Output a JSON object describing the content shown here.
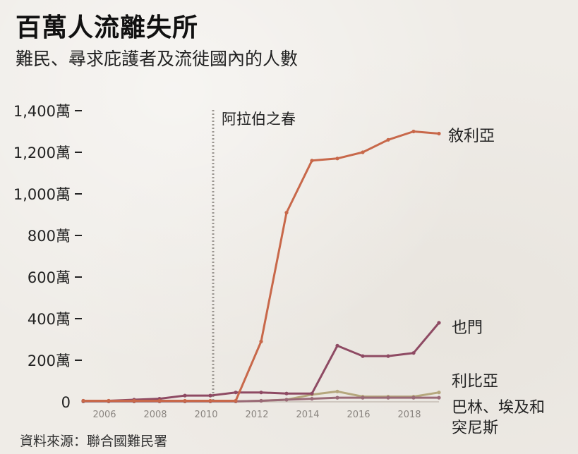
{
  "header": {
    "title": "百萬人流離失所",
    "subtitle": "難民、尋求庇護者及流徙國內的人數"
  },
  "footer": {
    "source": "資料來源：聯合國難民署"
  },
  "chart_data": {
    "type": "line",
    "title": "百萬人流離失所",
    "subtitle": "難民、尋求庇護者及流徙國內的人數",
    "x": [
      2005,
      2006,
      2007,
      2008,
      2009,
      2010,
      2011,
      2012,
      2013,
      2014,
      2015,
      2016,
      2017,
      2018,
      2019
    ],
    "xticks": [
      "2006",
      "2008",
      "2010",
      "2012",
      "2014",
      "2016",
      "2018"
    ],
    "xtick_values": [
      2006,
      2008,
      2010,
      2012,
      2014,
      2016,
      2018
    ],
    "yticks": [
      "0",
      "200萬",
      "400萬",
      "600萬",
      "800萬",
      "1,000萬",
      "1,200萬",
      "1,400萬"
    ],
    "ytick_values": [
      0,
      200,
      400,
      600,
      800,
      1000,
      1200,
      1400
    ],
    "ylim": [
      0,
      1400
    ],
    "xlim": [
      2005,
      2019
    ],
    "annotation": {
      "x": 2010,
      "label": "阿拉伯之春"
    },
    "series": [
      {
        "name": "敘利亞",
        "color": "#c8684a",
        "values": [
          5,
          5,
          5,
          5,
          5,
          5,
          5,
          290,
          910,
          1160,
          1170,
          1200,
          1260,
          1300,
          1290
        ]
      },
      {
        "name": "也門",
        "color": "#8e4a63",
        "values": [
          5,
          5,
          10,
          15,
          30,
          30,
          45,
          45,
          40,
          40,
          270,
          220,
          220,
          235,
          380
        ]
      },
      {
        "name": "利比亞",
        "color": "#9a6a77",
        "values": [
          2,
          2,
          2,
          2,
          2,
          2,
          2,
          5,
          10,
          15,
          20,
          20,
          20,
          20,
          20
        ]
      },
      {
        "name": "巴林、埃及和突尼斯",
        "color": "#b5a77d",
        "values": [
          2,
          2,
          2,
          2,
          2,
          2,
          2,
          5,
          10,
          35,
          50,
          25,
          25,
          25,
          45
        ]
      }
    ],
    "labels": [
      {
        "text": "敘利亞",
        "series": 0
      },
      {
        "text": "也門",
        "series": 1
      },
      {
        "text": "利比亞",
        "series": 2
      },
      {
        "text": "巴林、埃及和",
        "series": 3
      },
      {
        "text": "突尼斯",
        "series": 3
      }
    ]
  }
}
